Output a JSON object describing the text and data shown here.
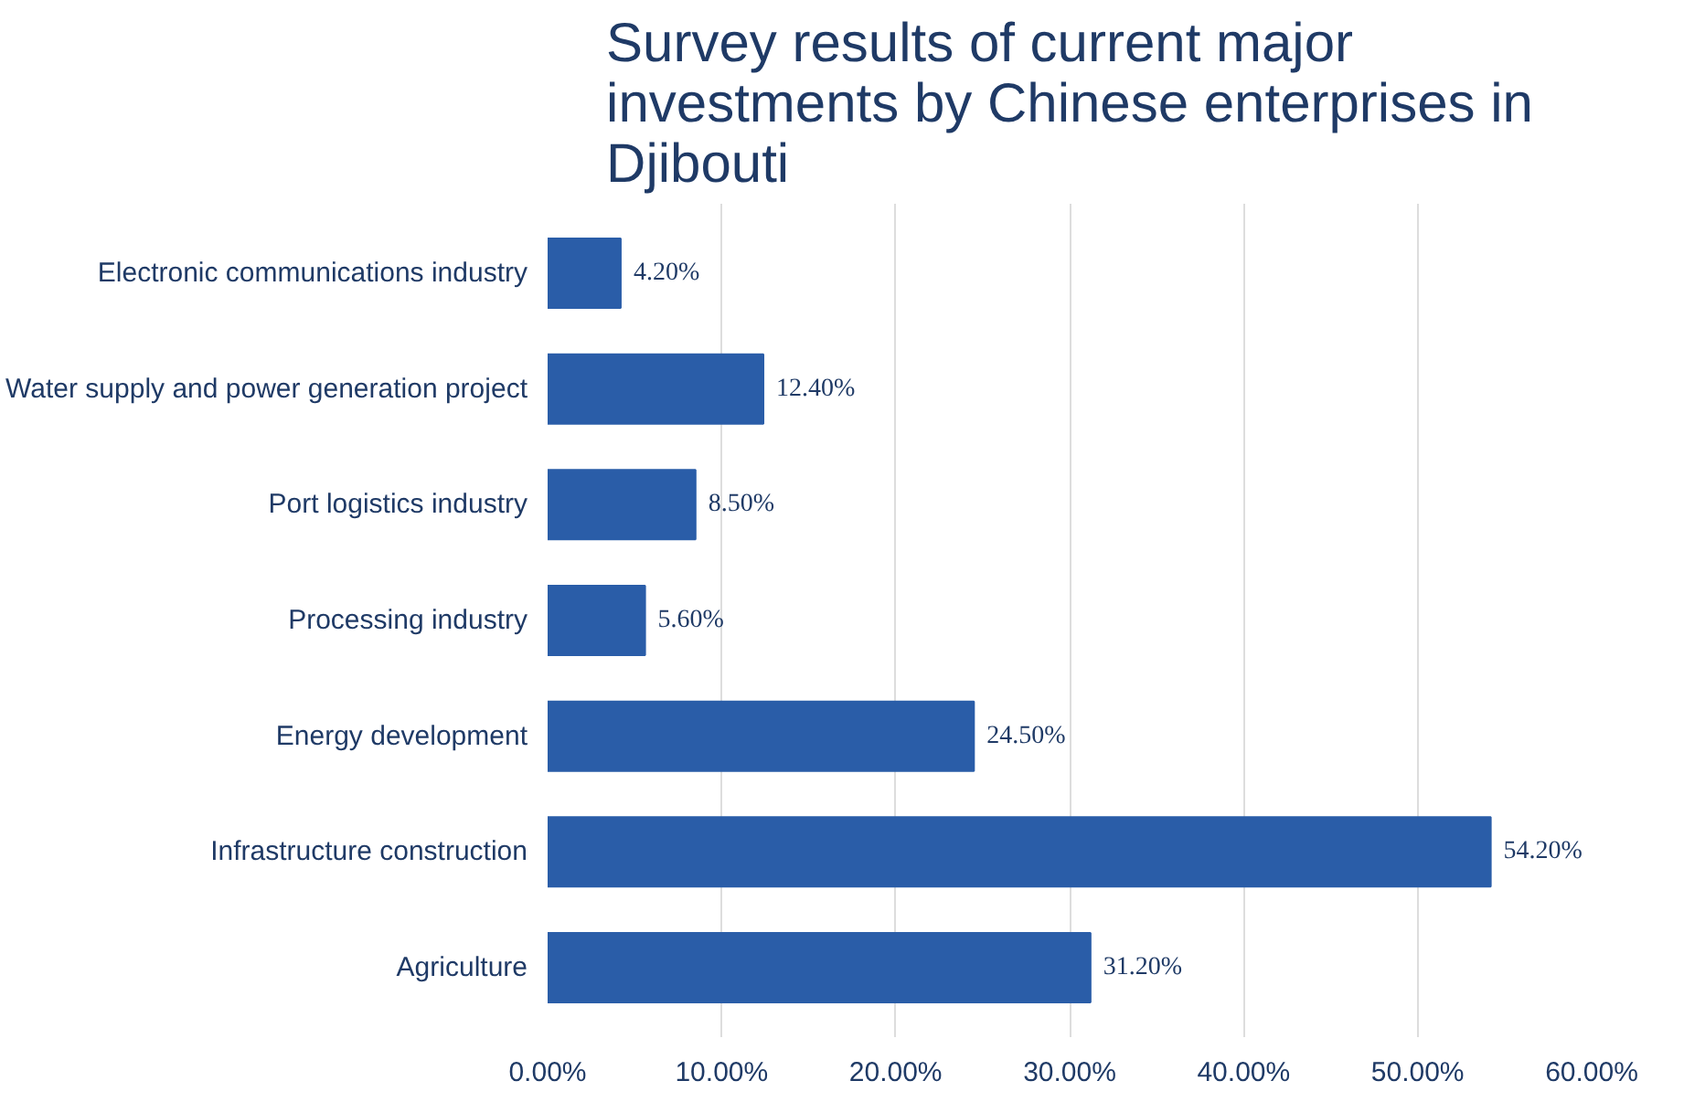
{
  "chart_data": {
    "type": "bar",
    "orientation": "horizontal",
    "title": "Survey results of current major investments by Chinese enterprises in Djibouti",
    "categories": [
      "Electronic communications industry",
      "Water supply and power generation project",
      "Port logistics industry",
      "Processing industry",
      "Energy development",
      "Infrastructure construction",
      "Agriculture"
    ],
    "values": [
      4.2,
      12.4,
      8.5,
      5.6,
      24.5,
      54.2,
      31.2
    ],
    "value_labels": [
      "4.20%",
      "12.40%",
      "8.50%",
      "5.60%",
      "24.50%",
      "54.20%",
      "31.20%"
    ],
    "color": "#2a5da8",
    "xlim": [
      0,
      60
    ],
    "xticks": [
      {
        "value": 0,
        "label": "0.00%"
      },
      {
        "value": 10,
        "label": "10.00%"
      },
      {
        "value": 20,
        "label": "20.00%"
      },
      {
        "value": 30,
        "label": "30.00%"
      },
      {
        "value": 40,
        "label": "40.00%"
      },
      {
        "value": 50,
        "label": "50.00%"
      },
      {
        "value": 60,
        "label": "60.00%"
      }
    ],
    "grid": "x"
  }
}
